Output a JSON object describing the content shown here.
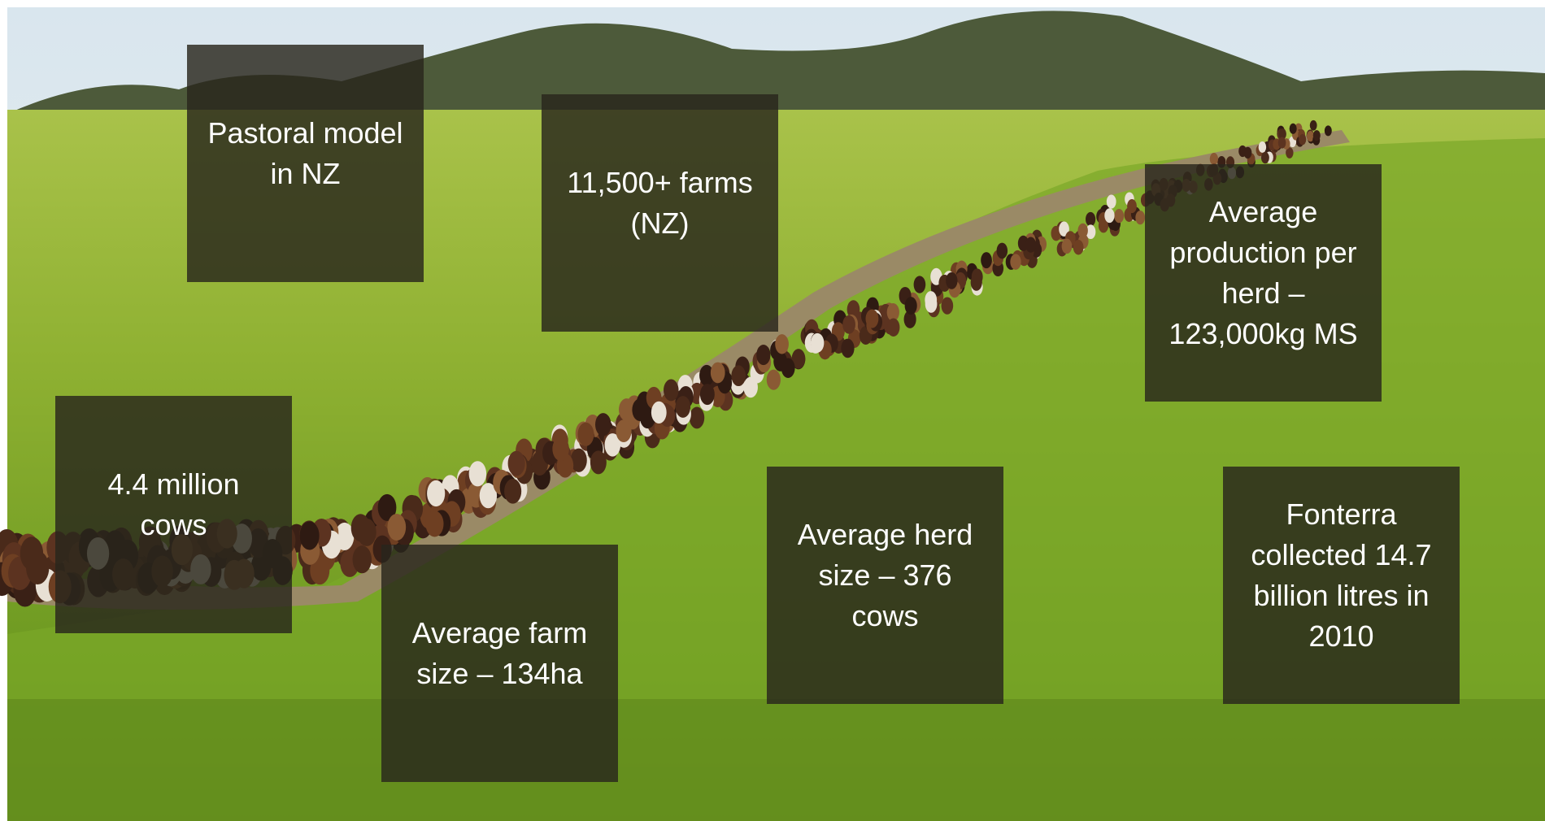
{
  "boxes": [
    {
      "text": "Pastoral model in NZ"
    },
    {
      "text": "11,500+ farms (NZ)"
    },
    {
      "text": "Average production per herd – 123,000kg MS"
    },
    {
      "text": "4.4 million cows"
    },
    {
      "text": "Average farm size – 134ha"
    },
    {
      "text": "Average herd size – 376 cows"
    },
    {
      "text": "Fonterra collected 14.7 billion litres in 2010"
    }
  ]
}
